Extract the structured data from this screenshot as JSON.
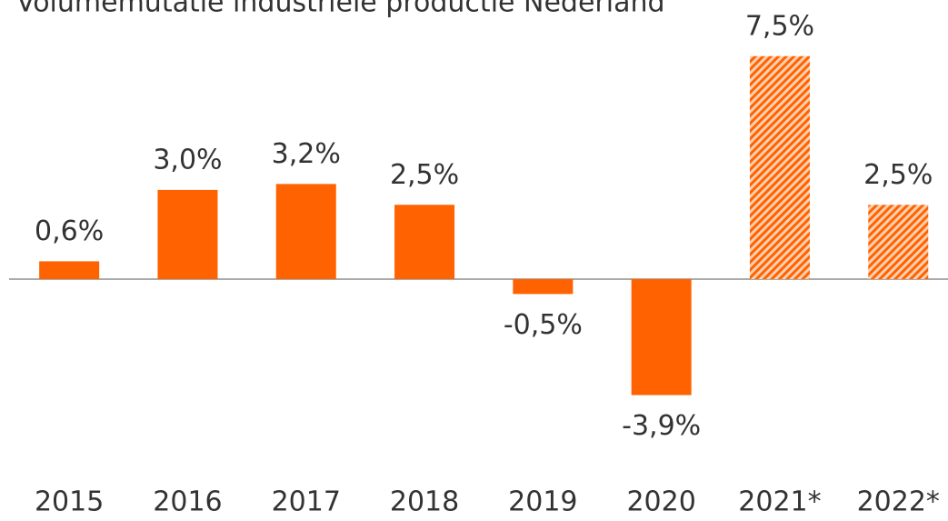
{
  "chart_data": {
    "type": "bar",
    "title": "Volumemutatie industriële productie Nederland",
    "categories": [
      "2015",
      "2016",
      "2017",
      "2018",
      "2019",
      "2020",
      "2021*",
      "2022*"
    ],
    "values": [
      0.6,
      3.0,
      3.2,
      2.5,
      -0.5,
      -3.9,
      7.5,
      2.5
    ],
    "value_labels": [
      "0,6%",
      "3,0%",
      "3,2%",
      "2,5%",
      "-0,5%",
      "-3,9%",
      "7,5%",
      "2,5%"
    ],
    "styles": [
      "solid",
      "solid",
      "solid",
      "solid",
      "solid",
      "solid",
      "hatched",
      "hatched"
    ],
    "color": "#ff6200"
  }
}
